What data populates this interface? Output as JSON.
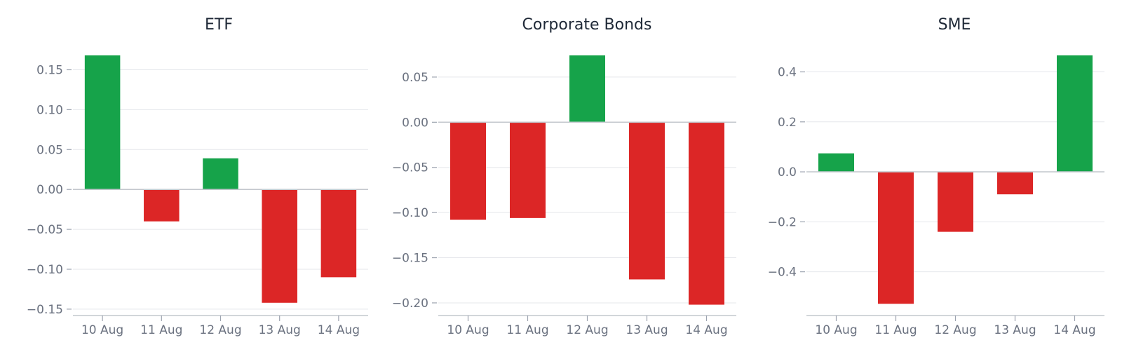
{
  "chart_data": [
    {
      "type": "bar",
      "title": "ETF",
      "categories": [
        "10 Aug",
        "11 Aug",
        "12 Aug",
        "13 Aug",
        "14 Aug"
      ],
      "values": [
        0.168,
        -0.04,
        0.039,
        -0.142,
        -0.11
      ],
      "ylim": [
        -0.158,
        0.168
      ],
      "yticks": [
        0.15,
        0.1,
        0.05,
        0.0,
        -0.05,
        -0.1,
        -0.15
      ],
      "ytick_labels": [
        "0.15",
        "0.10",
        "0.05",
        "0.00",
        "−0.05",
        "−0.10",
        "−0.15"
      ],
      "grid": true,
      "colors": {
        "positive": "#16a34a",
        "negative": "#dc2626"
      }
    },
    {
      "type": "bar",
      "title": "Corporate Bonds",
      "categories": [
        "10 Aug",
        "11 Aug",
        "12 Aug",
        "13 Aug",
        "14 Aug"
      ],
      "values": [
        -0.108,
        -0.106,
        0.074,
        -0.174,
        -0.202
      ],
      "ylim": [
        -0.214,
        0.074
      ],
      "yticks": [
        0.05,
        0.0,
        -0.05,
        -0.1,
        -0.15,
        -0.2
      ],
      "ytick_labels": [
        "0.05",
        "0.00",
        "−0.05",
        "−0.10",
        "−0.15",
        "−0.20"
      ],
      "grid": true,
      "colors": {
        "positive": "#16a34a",
        "negative": "#dc2626"
      }
    },
    {
      "type": "bar",
      "title": "SME",
      "categories": [
        "10 Aug",
        "11 Aug",
        "12 Aug",
        "13 Aug",
        "14 Aug"
      ],
      "values": [
        0.074,
        -0.528,
        -0.24,
        -0.09,
        0.466
      ],
      "ylim": [
        -0.575,
        0.466
      ],
      "yticks": [
        0.4,
        0.2,
        0.0,
        -0.2,
        -0.4
      ],
      "ytick_labels": [
        "0.4",
        "0.2",
        "0.0",
        "−0.2",
        "−0.4"
      ],
      "grid": true,
      "colors": {
        "positive": "#16a34a",
        "negative": "#dc2626"
      }
    }
  ]
}
